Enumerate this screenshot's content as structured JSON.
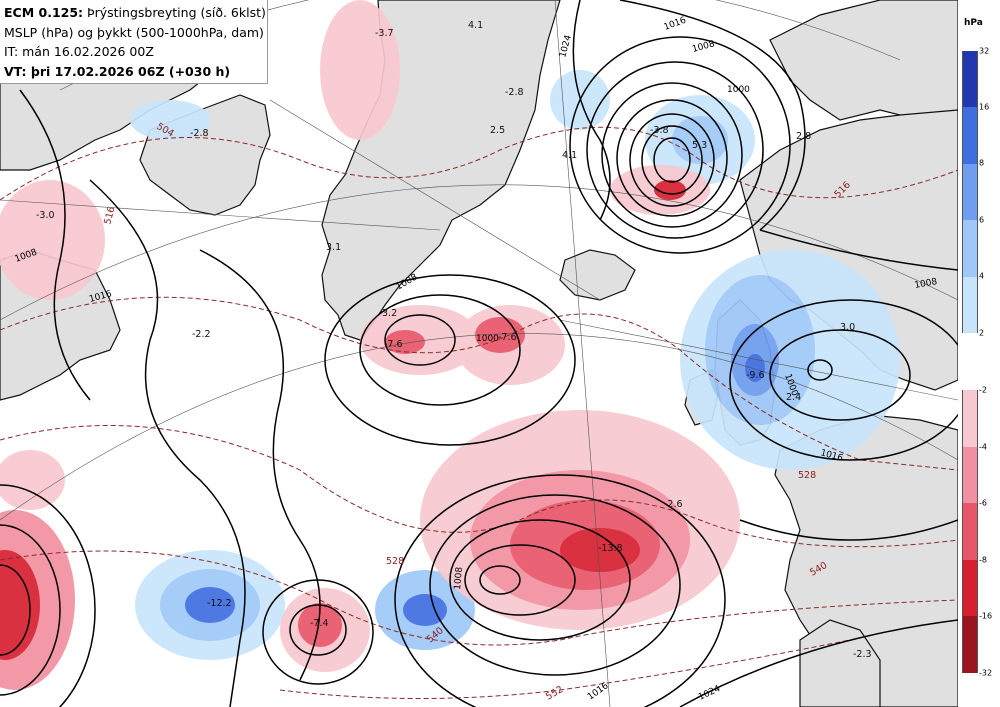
{
  "header": {
    "model": "ECM 0.125:",
    "title": "Þrýstingsbreyting (síð. 6klst)",
    "line2": "MSLP (hPa) og þykkt (500-1000hPa, dam)",
    "line3": "IT: mán 16.02.2026 00Z",
    "line4": "VT: þri 17.02.2026 06Z (+030 h)"
  },
  "legend": {
    "unit": "hPa",
    "rise": {
      "ticks": [
        "32",
        "16",
        "8",
        "6",
        "4",
        "2"
      ],
      "colors": [
        "#2338b0",
        "#3f6ee0",
        "#6f9ef0",
        "#9fc8f8",
        "#c8e4fb"
      ]
    },
    "fall": {
      "ticks": [
        "-2",
        "-4",
        "-6",
        "-8",
        "-16",
        "-32"
      ],
      "colors": [
        "#f8c8d0",
        "#f190a0",
        "#e8566a",
        "#d62030",
        "#9b1420"
      ]
    }
  },
  "map": {
    "pressure_change_labels": [
      "4.1",
      "-3.7",
      "-2.8",
      "-2.8",
      "2.5",
      "4.1",
      "-3.8",
      "5.3",
      "2.8",
      "-3.0",
      "3.1",
      "-2.2",
      "3.2",
      "-7.6",
      "-7.6",
      "3.0",
      "-9.6",
      "2.4",
      "-2.6",
      "-13.8",
      "-12.2",
      "-7.4",
      "-2.3"
    ],
    "isobar_labels": [
      "1024",
      "1016",
      "1008",
      "1000",
      "1008",
      "1016",
      "1008",
      "1000",
      "1000",
      "1008",
      "1008",
      "1016",
      "1024",
      "1016"
    ],
    "thickness_labels": [
      "504",
      "516",
      "516",
      "528",
      "528",
      "540",
      "540",
      "552"
    ],
    "colors": {
      "land": "#e0e0e0",
      "coast": "#111111",
      "isobar": "#000000",
      "thickness": "#8b2a2a"
    }
  }
}
